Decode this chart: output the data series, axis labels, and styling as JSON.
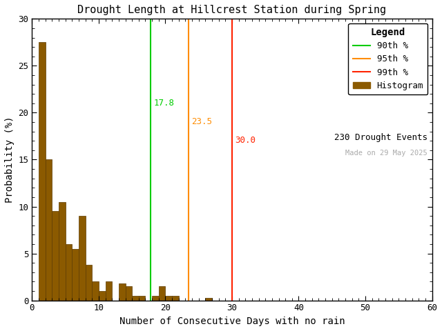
{
  "title": "Drought Length at Hillcrest Station during Spring",
  "xlabel": "Number of Consecutive Days with no rain",
  "ylabel": "Probability (%)",
  "xlim": [
    0,
    60
  ],
  "ylim": [
    0,
    30
  ],
  "xticks": [
    0,
    10,
    20,
    30,
    40,
    50,
    60
  ],
  "yticks": [
    0,
    5,
    10,
    15,
    20,
    25,
    30
  ],
  "bar_color": "#8B5A00",
  "bar_edgecolor": "#5C3A00",
  "background_color": "#FFFFFF",
  "p90_value": 17.8,
  "p95_value": 23.5,
  "p99_value": 30.0,
  "p90_color": "#00CC00",
  "p90_legend_color": "#888888",
  "p95_color": "#FF8C00",
  "p99_color": "#FF2200",
  "n_events": "230 Drought Events",
  "made_on": "Made on 29 May 2025",
  "p90_label": "90th %",
  "p95_label": "95th %",
  "p99_label": "99th %",
  "hist_label": "Histogram",
  "legend_title": "Legend",
  "bin_starts": [
    1,
    2,
    3,
    4,
    5,
    6,
    7,
    8,
    9,
    10,
    11,
    12,
    13,
    14,
    15,
    16,
    17,
    18,
    19,
    20,
    21,
    22,
    23,
    24,
    25,
    26,
    27,
    28,
    29,
    30,
    31,
    32,
    33
  ],
  "bin_values": [
    27.5,
    15.0,
    9.5,
    10.5,
    6.0,
    5.5,
    9.0,
    3.8,
    2.0,
    1.0,
    2.0,
    0.0,
    1.8,
    1.5,
    0.5,
    0.5,
    0.0,
    0.5,
    1.5,
    0.5,
    0.5,
    0.0,
    0.0,
    0.0,
    0.0,
    0.3,
    0.0,
    0.0,
    0.0,
    0.0,
    0.0,
    0.0,
    0.0
  ]
}
